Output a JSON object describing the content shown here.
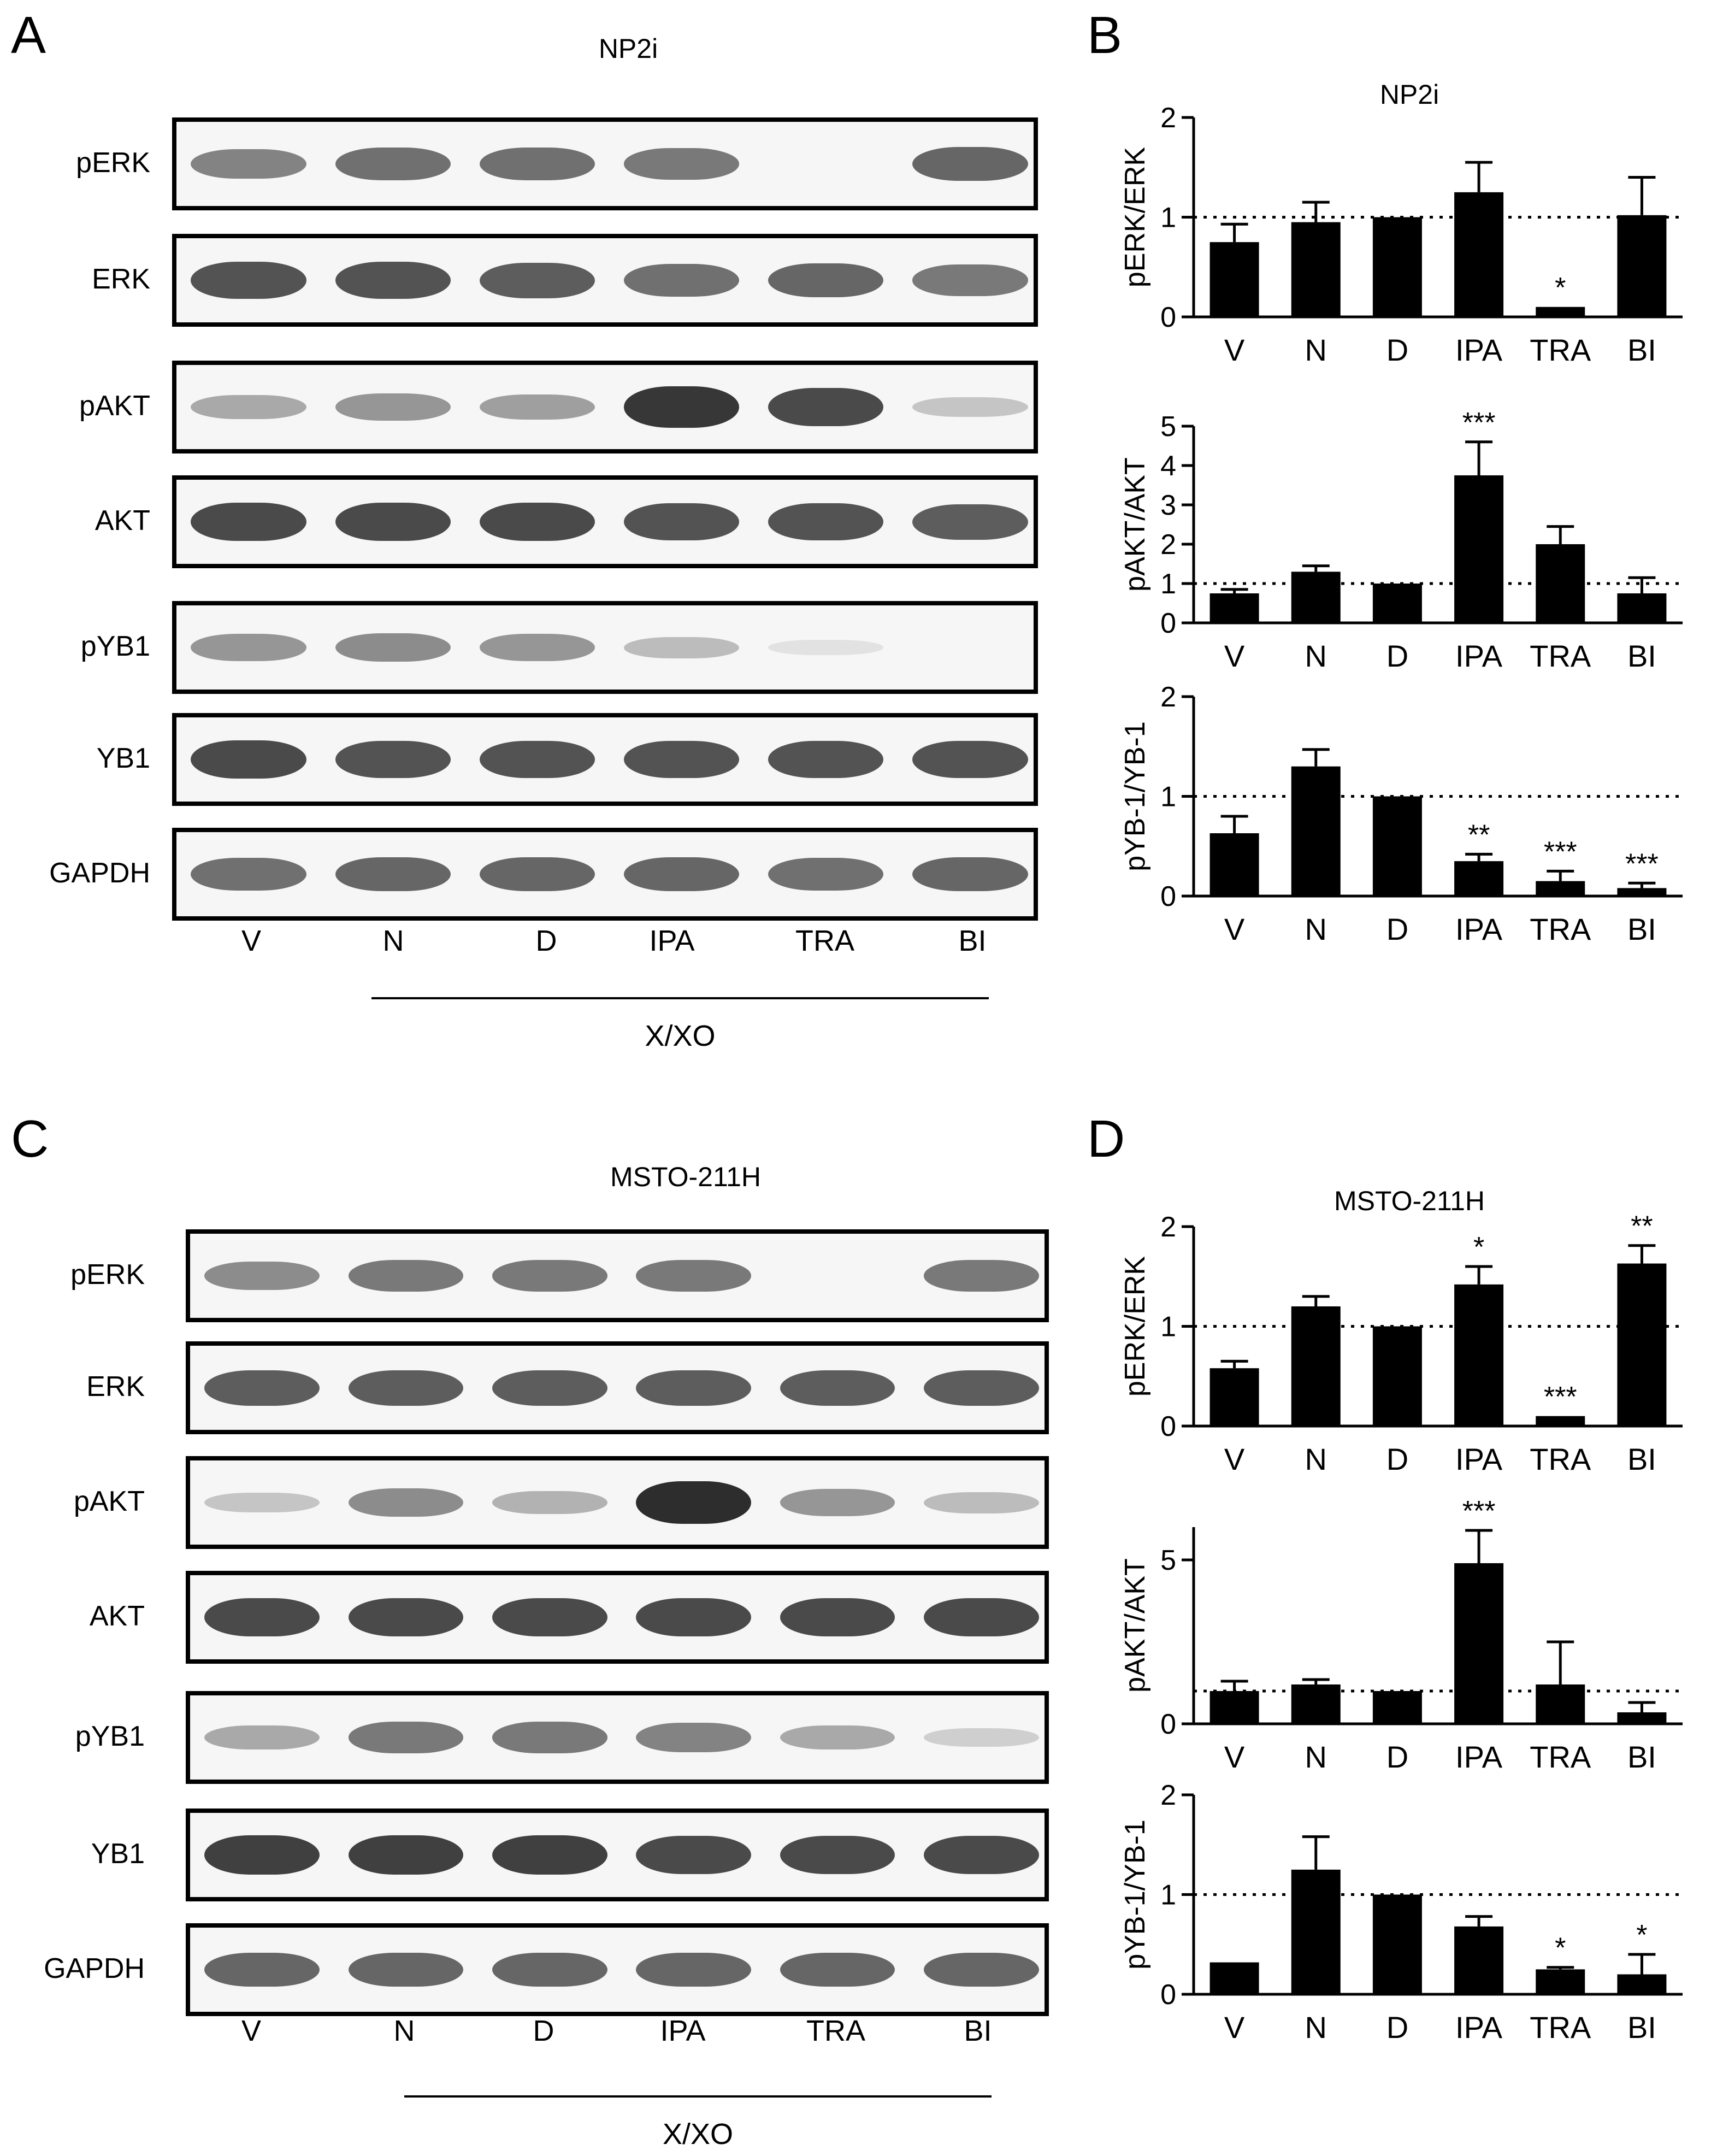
{
  "panels": {
    "A": {
      "letter": "A",
      "title": "NP2i"
    },
    "B": {
      "letter": "B"
    },
    "C": {
      "letter": "C",
      "title": "MSTO-211H"
    },
    "D": {
      "letter": "D"
    }
  },
  "blot_rows": [
    "pERK",
    "ERK",
    "pAKT",
    "AKT",
    "pYB1",
    "YB1",
    "GAPDH"
  ],
  "lanes": [
    "V",
    "N",
    "D",
    "IPA",
    "TRA",
    "BI"
  ],
  "treatment_label": "X/XO",
  "blot_intensity": {
    "A": {
      "pERK": [
        0.55,
        0.65,
        0.65,
        0.6,
        0.0,
        0.7
      ],
      "ERK": [
        0.8,
        0.8,
        0.75,
        0.65,
        0.7,
        0.6
      ],
      "pAKT": [
        0.35,
        0.45,
        0.4,
        0.95,
        0.85,
        0.2
      ],
      "AKT": [
        0.85,
        0.85,
        0.85,
        0.8,
        0.8,
        0.75
      ],
      "pYB1": [
        0.45,
        0.5,
        0.45,
        0.25,
        0.05,
        0.0
      ],
      "YB1": [
        0.85,
        0.8,
        0.8,
        0.8,
        0.8,
        0.8
      ],
      "GAPDH": [
        0.65,
        0.7,
        0.7,
        0.7,
        0.65,
        0.7
      ]
    },
    "C": {
      "pERK": [
        0.5,
        0.6,
        0.6,
        0.6,
        0.0,
        0.6
      ],
      "ERK": [
        0.75,
        0.75,
        0.75,
        0.75,
        0.75,
        0.75
      ],
      "pAKT": [
        0.2,
        0.5,
        0.3,
        1.0,
        0.45,
        0.25
      ],
      "AKT": [
        0.85,
        0.85,
        0.85,
        0.85,
        0.85,
        0.85
      ],
      "pYB1": [
        0.35,
        0.6,
        0.6,
        0.55,
        0.35,
        0.15
      ],
      "YB1": [
        0.9,
        0.9,
        0.9,
        0.85,
        0.85,
        0.85
      ],
      "GAPDH": [
        0.7,
        0.7,
        0.7,
        0.7,
        0.7,
        0.7
      ]
    }
  },
  "chart_data": [
    {
      "panel": "B",
      "type": "bar",
      "title": "NP2i",
      "ylabel": "pERK/ERK",
      "ylim": [
        0,
        2
      ],
      "yticks": [
        0,
        1,
        2
      ],
      "categories": [
        "V",
        "N",
        "D",
        "IPA",
        "TRA",
        "BI"
      ],
      "values": [
        0.75,
        0.95,
        1.0,
        1.25,
        0.1,
        1.02
      ],
      "errors": [
        0.18,
        0.2,
        0.0,
        0.3,
        0.0,
        0.38
      ],
      "significance": [
        "",
        "",
        "",
        "",
        "*",
        ""
      ],
      "reference_line": 1
    },
    {
      "panel": "B",
      "type": "bar",
      "title": "",
      "ylabel": "pAKT/AKT",
      "ylim": [
        0,
        5
      ],
      "yticks": [
        0,
        1,
        2,
        3,
        4,
        5
      ],
      "categories": [
        "V",
        "N",
        "D",
        "IPA",
        "TRA",
        "BI"
      ],
      "values": [
        0.75,
        1.3,
        1.0,
        3.75,
        2.0,
        0.75
      ],
      "errors": [
        0.1,
        0.15,
        0.0,
        0.85,
        0.45,
        0.4
      ],
      "significance": [
        "",
        "",
        "",
        "***",
        "",
        ""
      ],
      "reference_line": 1
    },
    {
      "panel": "B",
      "type": "bar",
      "title": "",
      "ylabel": "pYB-1/YB-1",
      "ylim": [
        0,
        2
      ],
      "yticks": [
        0,
        1,
        2
      ],
      "categories": [
        "V",
        "N",
        "D",
        "IPA",
        "TRA",
        "BI"
      ],
      "values": [
        0.63,
        1.3,
        1.0,
        0.35,
        0.15,
        0.08
      ],
      "errors": [
        0.17,
        0.17,
        0.0,
        0.07,
        0.1,
        0.05
      ],
      "significance": [
        "",
        "",
        "",
        "**",
        "***",
        "***"
      ],
      "reference_line": 1
    },
    {
      "panel": "D",
      "type": "bar",
      "title": "MSTO-211H",
      "ylabel": "pERK/ERK",
      "ylim": [
        0,
        2
      ],
      "yticks": [
        0,
        1,
        2
      ],
      "categories": [
        "V",
        "N",
        "D",
        "IPA",
        "TRA",
        "BI"
      ],
      "values": [
        0.58,
        1.2,
        1.0,
        1.42,
        0.1,
        1.63
      ],
      "errors": [
        0.07,
        0.1,
        0.0,
        0.18,
        0.0,
        0.18
      ],
      "significance": [
        "",
        "",
        "",
        "*",
        "***",
        "**"
      ],
      "reference_line": 1
    },
    {
      "panel": "D",
      "type": "bar",
      "title": "",
      "ylabel": "pAKT/AKT",
      "ylim": [
        0,
        6
      ],
      "yticks": [
        0,
        5
      ],
      "categories": [
        "V",
        "N",
        "D",
        "IPA",
        "TRA",
        "BI"
      ],
      "values": [
        1.0,
        1.2,
        1.0,
        4.9,
        1.2,
        0.35
      ],
      "errors": [
        0.3,
        0.15,
        0.0,
        1.0,
        1.3,
        0.3
      ],
      "significance": [
        "",
        "",
        "",
        "***",
        "",
        ""
      ],
      "reference_line": 1
    },
    {
      "panel": "D",
      "type": "bar",
      "title": "",
      "ylabel": "pYB-1/YB-1",
      "ylim": [
        0,
        2
      ],
      "yticks": [
        0,
        1,
        2
      ],
      "categories": [
        "V",
        "N",
        "D",
        "IPA",
        "TRA",
        "BI"
      ],
      "values": [
        0.32,
        1.25,
        1.0,
        0.68,
        0.25,
        0.2
      ],
      "errors": [
        0.0,
        0.33,
        0.0,
        0.1,
        0.02,
        0.2
      ],
      "significance": [
        "",
        "",
        "",
        "",
        "*",
        "*"
      ],
      "reference_line": 1
    }
  ]
}
